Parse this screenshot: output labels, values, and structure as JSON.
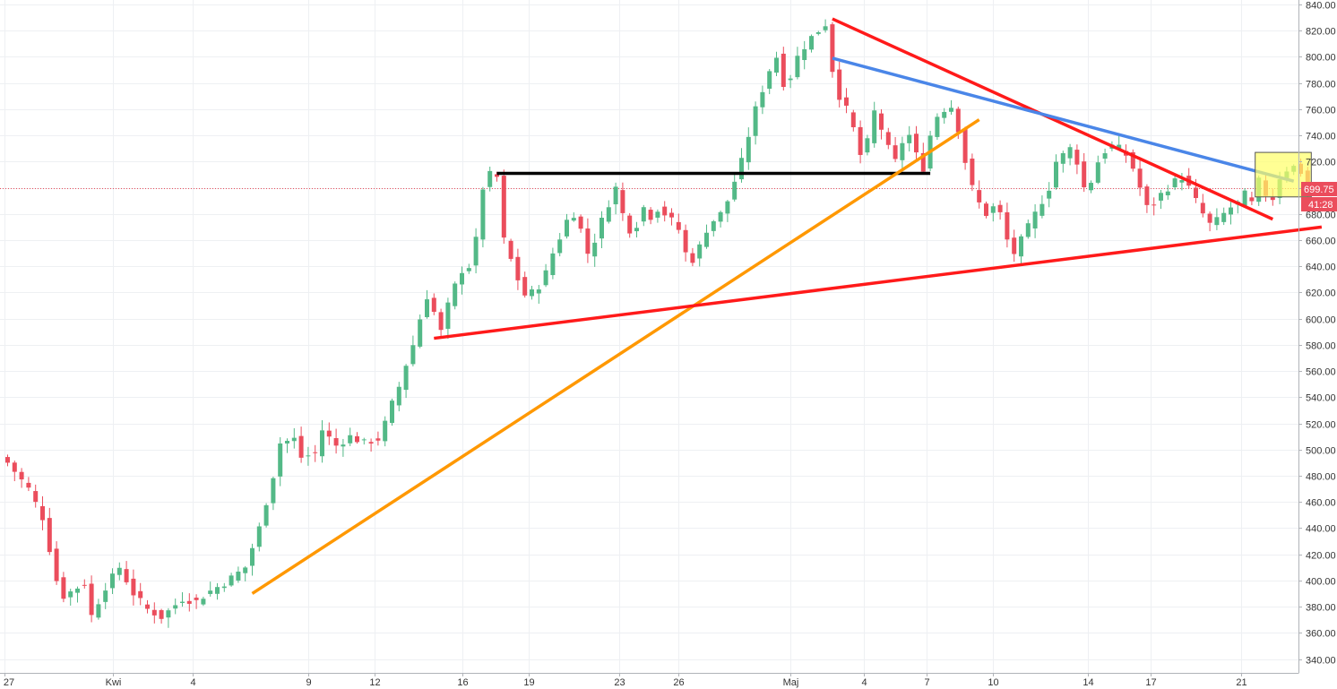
{
  "chart_data": {
    "type": "candlestick",
    "x_tick_labels": [
      "27",
      "Kwi",
      "4",
      "9",
      "12",
      "16",
      "19",
      "23",
      "26",
      "Maj",
      "4",
      "7",
      "10",
      "14",
      "17",
      "21"
    ],
    "y_ticks": [
      340,
      360,
      380,
      400,
      420,
      440,
      460,
      480,
      500,
      520,
      540,
      560,
      580,
      600,
      620,
      640,
      660,
      680,
      700,
      720,
      740,
      760,
      780,
      800,
      820,
      840
    ],
    "ylim": [
      330,
      842
    ],
    "grid": true,
    "current_price": 699.75,
    "current_price_label": "699.75",
    "countdown_label": "41:28",
    "colors": {
      "up": "#53b987",
      "down": "#eb4d5c",
      "grid": "#eef0f3",
      "axis_text": "#333333",
      "price_line": "#eb4d5c",
      "badge_bg": "#eb4d5c",
      "highlight_fill": "#ffff66",
      "highlight_stroke": "#555555"
    },
    "close_path": [
      [
        0,
        490
      ],
      [
        3,
        470
      ],
      [
        5,
        448
      ],
      [
        7,
        400
      ],
      [
        8,
        388
      ],
      [
        11,
        398
      ],
      [
        12,
        373
      ],
      [
        14,
        395
      ],
      [
        16,
        410
      ],
      [
        18,
        390
      ],
      [
        20,
        378
      ],
      [
        22,
        372
      ],
      [
        25,
        386
      ],
      [
        27,
        384
      ],
      [
        29,
        392
      ],
      [
        31,
        398
      ],
      [
        34,
        410
      ],
      [
        36,
        440
      ],
      [
        38,
        480
      ],
      [
        39,
        505
      ],
      [
        41,
        508
      ],
      [
        42,
        494
      ],
      [
        44,
        497
      ],
      [
        45,
        515
      ],
      [
        47,
        503
      ],
      [
        49,
        510
      ],
      [
        51,
        505
      ],
      [
        53,
        508
      ],
      [
        54,
        520
      ],
      [
        55,
        535
      ],
      [
        56,
        548
      ],
      [
        57,
        565
      ],
      [
        58,
        580
      ],
      [
        59,
        600
      ],
      [
        60,
        617
      ],
      [
        61,
        605
      ],
      [
        62,
        590
      ],
      [
        63,
        610
      ],
      [
        64,
        625
      ],
      [
        65,
        637
      ],
      [
        66,
        640
      ],
      [
        67,
        660
      ],
      [
        68,
        700
      ],
      [
        69,
        710
      ],
      [
        70,
        708
      ],
      [
        71,
        660
      ],
      [
        72,
        645
      ],
      [
        73,
        630
      ],
      [
        74,
        618
      ],
      [
        75,
        620
      ],
      [
        76,
        625
      ],
      [
        77,
        635
      ],
      [
        78,
        650
      ],
      [
        79,
        662
      ],
      [
        80,
        675
      ],
      [
        81,
        680
      ],
      [
        82,
        668
      ],
      [
        83,
        650
      ],
      [
        84,
        660
      ],
      [
        85,
        675
      ],
      [
        86,
        688
      ],
      [
        87,
        700
      ],
      [
        88,
        680
      ],
      [
        89,
        668
      ],
      [
        90,
        672
      ],
      [
        91,
        685
      ],
      [
        92,
        678
      ],
      [
        93,
        684
      ],
      [
        94,
        680
      ],
      [
        95,
        675
      ],
      [
        96,
        668
      ],
      [
        97,
        650
      ],
      [
        98,
        645
      ],
      [
        99,
        655
      ],
      [
        100,
        668
      ],
      [
        101,
        675
      ],
      [
        102,
        680
      ],
      [
        103,
        690
      ],
      [
        104,
        705
      ],
      [
        105,
        720
      ],
      [
        106,
        740
      ],
      [
        107,
        760
      ],
      [
        108,
        775
      ],
      [
        109,
        790
      ],
      [
        110,
        800
      ],
      [
        111,
        780
      ],
      [
        112,
        785
      ],
      [
        113,
        800
      ],
      [
        114,
        808
      ],
      [
        115,
        815
      ],
      [
        116,
        820
      ],
      [
        117,
        825
      ],
      [
        118,
        790
      ],
      [
        119,
        770
      ],
      [
        120,
        760
      ],
      [
        121,
        745
      ],
      [
        122,
        725
      ],
      [
        123,
        735
      ],
      [
        124,
        758
      ],
      [
        125,
        745
      ],
      [
        126,
        730
      ],
      [
        127,
        720
      ],
      [
        128,
        735
      ],
      [
        129,
        740
      ],
      [
        130,
        725
      ],
      [
        131,
        715
      ],
      [
        132,
        740
      ],
      [
        133,
        755
      ],
      [
        134,
        760
      ],
      [
        135,
        762
      ],
      [
        136,
        745
      ],
      [
        137,
        720
      ],
      [
        138,
        700
      ],
      [
        139,
        688
      ],
      [
        140,
        680
      ],
      [
        141,
        685
      ],
      [
        142,
        680
      ],
      [
        143,
        660
      ],
      [
        144,
        650
      ],
      [
        145,
        660
      ],
      [
        146,
        670
      ],
      [
        147,
        680
      ],
      [
        148,
        690
      ],
      [
        149,
        700
      ],
      [
        150,
        720
      ],
      [
        151,
        725
      ],
      [
        152,
        730
      ],
      [
        153,
        720
      ],
      [
        154,
        700
      ],
      [
        155,
        705
      ],
      [
        156,
        720
      ],
      [
        157,
        728
      ],
      [
        158,
        732
      ],
      [
        159,
        730
      ],
      [
        160,
        725
      ],
      [
        161,
        715
      ],
      [
        162,
        700
      ],
      [
        163,
        685
      ],
      [
        164,
        688
      ],
      [
        165,
        695
      ],
      [
        166,
        700
      ],
      [
        167,
        705
      ],
      [
        168,
        708
      ],
      [
        169,
        700
      ],
      [
        170,
        690
      ],
      [
        171,
        680
      ],
      [
        172,
        672
      ],
      [
        173,
        675
      ],
      [
        174,
        680
      ],
      [
        175,
        685
      ],
      [
        176,
        688
      ],
      [
        177,
        695
      ],
      [
        178,
        688
      ],
      [
        179,
        705
      ],
      [
        180,
        695
      ],
      [
        181,
        692
      ],
      [
        182,
        708
      ],
      [
        183,
        714
      ],
      [
        184,
        716
      ],
      [
        185,
        712
      ],
      [
        186,
        700
      ]
    ],
    "trendlines": [
      {
        "color": "#000000",
        "from": [
          70,
          711
        ],
        "to": [
          132,
          711
        ]
      },
      {
        "color": "#ff9800",
        "from": [
          35,
          390
        ],
        "to": [
          139,
          752
        ]
      },
      {
        "color": "#ff1a1a",
        "from": [
          61,
          585
        ],
        "to": [
          188,
          670
        ]
      },
      {
        "color": "#ff1a1a",
        "from": [
          118,
          829
        ],
        "to": [
          181,
          676
        ]
      },
      {
        "color": "#4a86e8",
        "from": [
          118,
          799
        ],
        "to": [
          184,
          705
        ]
      }
    ],
    "highlight_box": {
      "from": [
        179,
        693
      ],
      "to": [
        186,
        727
      ]
    },
    "x_tick_positions": [
      -0.5,
      15,
      26.5,
      43,
      52.5,
      65,
      74.5,
      87.5,
      96,
      112,
      122.5,
      131.5,
      141,
      154.5,
      163.5,
      176.5
    ]
  }
}
